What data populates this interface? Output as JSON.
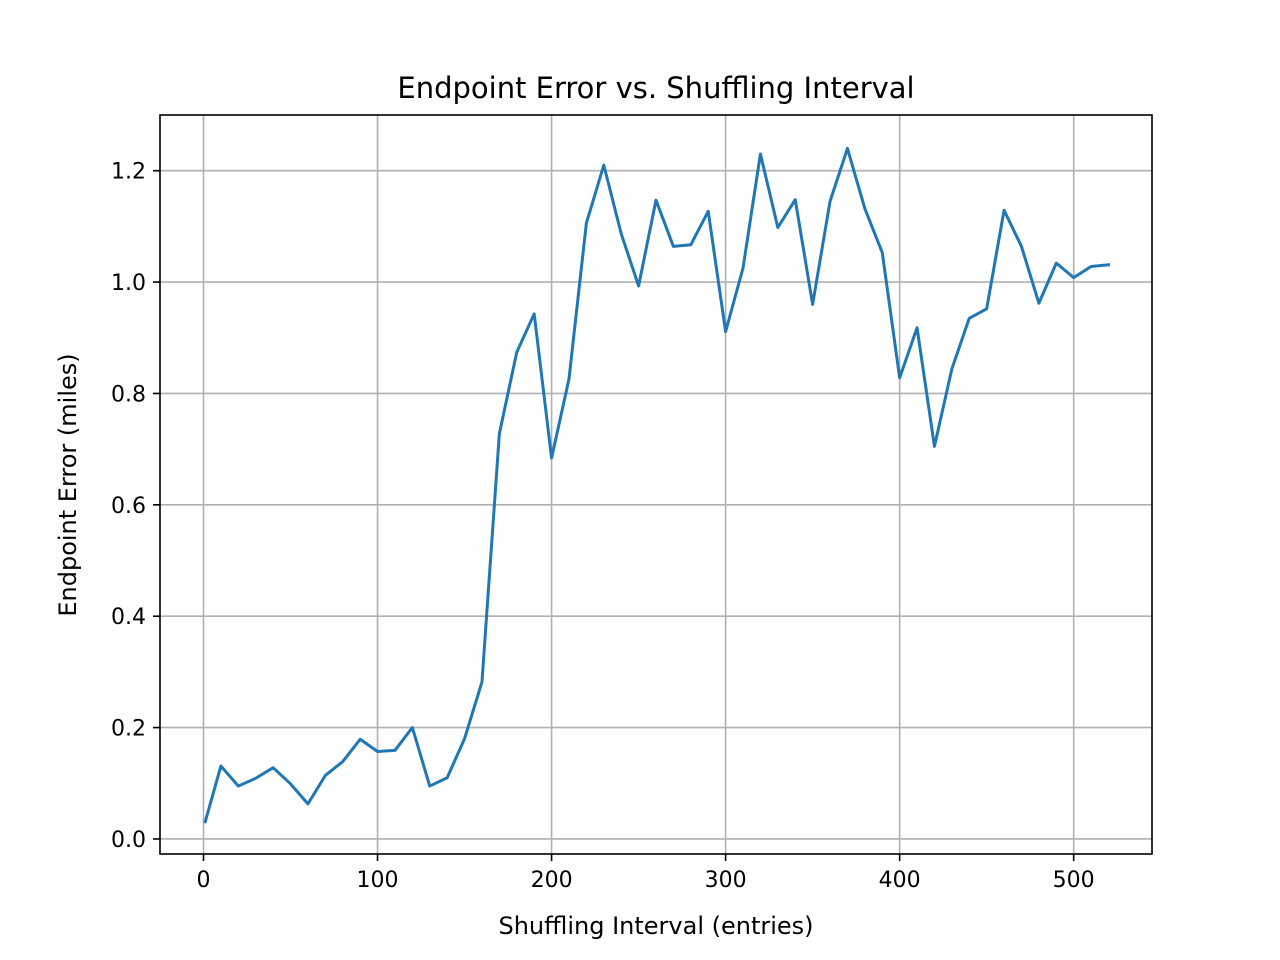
{
  "chart_data": {
    "type": "line",
    "title": "Endpoint Error vs. Shuffling Interval",
    "xlabel": "Shuffling Interval (entries)",
    "ylabel": "Endpoint Error (miles)",
    "xlim": [
      -25,
      545
    ],
    "ylim": [
      -0.027,
      1.3
    ],
    "xticks": [
      0,
      100,
      200,
      300,
      400,
      500
    ],
    "xtick_labels": [
      "0",
      "100",
      "200",
      "300",
      "400",
      "500"
    ],
    "yticks": [
      0.0,
      0.2,
      0.4,
      0.6,
      0.8,
      1.0,
      1.2
    ],
    "ytick_labels": [
      "0.0",
      "0.2",
      "0.4",
      "0.6",
      "0.8",
      "1.0",
      "1.2"
    ],
    "grid": true,
    "series": [
      {
        "color": "#1f77b4",
        "x": [
          1,
          10,
          20,
          30,
          40,
          50,
          60,
          70,
          80,
          90,
          100,
          110,
          120,
          130,
          140,
          150,
          160,
          170,
          180,
          190,
          200,
          210,
          220,
          230,
          240,
          250,
          260,
          270,
          280,
          290,
          300,
          310,
          320,
          330,
          340,
          350,
          360,
          370,
          380,
          390,
          400,
          410,
          420,
          430,
          440,
          450,
          460,
          470,
          480,
          490,
          500,
          510,
          520
        ],
        "y": [
          0.031,
          0.131,
          0.095,
          0.109,
          0.128,
          0.099,
          0.063,
          0.114,
          0.139,
          0.179,
          0.157,
          0.159,
          0.2,
          0.095,
          0.11,
          0.18,
          0.282,
          0.728,
          0.874,
          0.943,
          0.684,
          0.826,
          1.106,
          1.21,
          1.087,
          0.993,
          1.147,
          1.064,
          1.067,
          1.127,
          0.911,
          1.025,
          1.23,
          1.098,
          1.148,
          0.96,
          1.145,
          1.24,
          1.132,
          1.053,
          0.828,
          0.918,
          0.705,
          0.844,
          0.935,
          0.952,
          1.129,
          1.064,
          0.962,
          1.034,
          1.008,
          1.028,
          1.031
        ]
      }
    ]
  }
}
